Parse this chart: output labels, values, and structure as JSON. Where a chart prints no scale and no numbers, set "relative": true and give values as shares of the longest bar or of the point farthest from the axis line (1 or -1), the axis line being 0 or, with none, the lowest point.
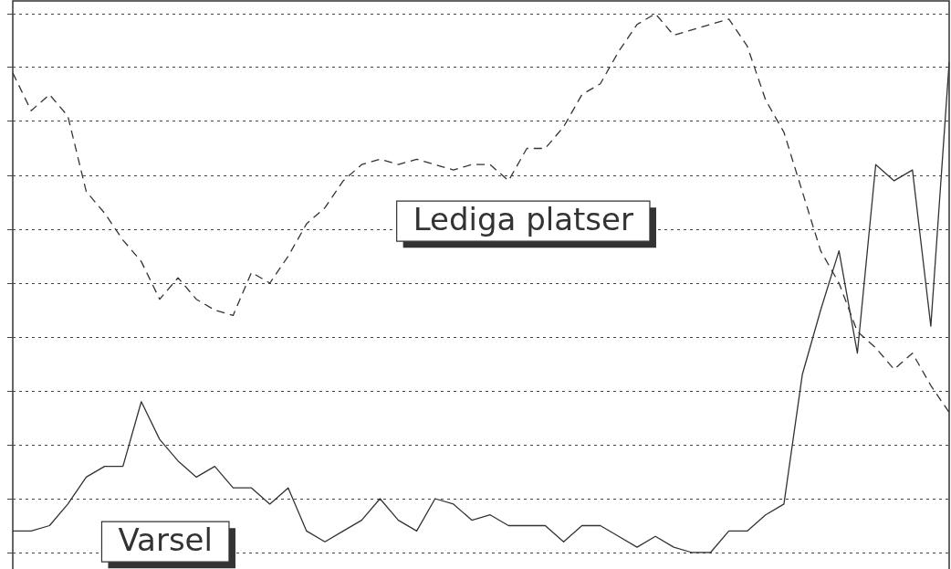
{
  "chart_data": {
    "type": "line",
    "relative": true,
    "grid": "y",
    "marker": "none",
    "legend": false,
    "categories": [
      null,
      null,
      null,
      null,
      null,
      null,
      null,
      null,
      null,
      null,
      null,
      null,
      null,
      null,
      null,
      null,
      null,
      null,
      null,
      null,
      null,
      null,
      null,
      null,
      null,
      null,
      null,
      null,
      null,
      null,
      null,
      null,
      null,
      null,
      null,
      null,
      null,
      null,
      null,
      null,
      null,
      null,
      null,
      null,
      null,
      null,
      null,
      null,
      null,
      null,
      null,
      null
    ],
    "series": [
      {
        "name": "Lediga platser",
        "color": "#333333",
        "line_style": "dashed",
        "values": [
          0.89,
          0.82,
          0.85,
          0.81,
          0.67,
          0.63,
          0.58,
          0.54,
          0.47,
          0.51,
          0.47,
          0.45,
          0.44,
          0.52,
          0.5,
          0.55,
          0.61,
          0.64,
          0.69,
          0.72,
          0.73,
          0.72,
          0.73,
          0.72,
          0.71,
          0.72,
          0.72,
          0.69,
          0.75,
          0.75,
          0.79,
          0.85,
          0.87,
          0.93,
          0.98,
          1,
          0.96,
          0.97,
          0.98,
          0.99,
          0.94,
          0.84,
          0.78,
          0.67,
          0.56,
          0.5,
          0.41,
          0.38,
          0.34,
          0.37,
          0.31,
          0.26
        ]
      },
      {
        "name": "Varsel",
        "color": "#333333",
        "line_style": "solid",
        "values": [
          0.04,
          0.04,
          0.05,
          0.09,
          0.14,
          0.16,
          0.16,
          0.28,
          0.21,
          0.17,
          0.14,
          0.16,
          0.12,
          0.12,
          0.09,
          0.12,
          0.04,
          0.02,
          0.04,
          0.06,
          0.1,
          0.06,
          0.04,
          0.1,
          0.09,
          0.06,
          0.07,
          0.05,
          0.05,
          0.05,
          0.02,
          0.05,
          0.05,
          0.03,
          0.01,
          0.03,
          0.01,
          0,
          0,
          0.04,
          0.04,
          0.07,
          0.09,
          0.33,
          0.45,
          0.56,
          0.37,
          0.72,
          0.69,
          0.71,
          0.42,
          0.91
        ]
      }
    ]
  }
}
